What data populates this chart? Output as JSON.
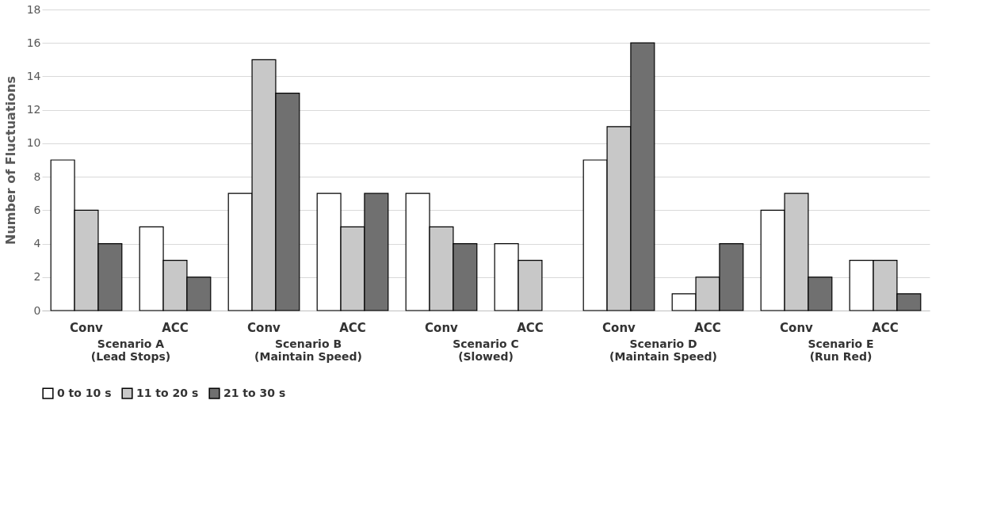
{
  "chart_data": {
    "type": "bar",
    "ylabel": "Number of Fluctuations",
    "categories": [
      "Conv",
      "ACC",
      "Conv",
      "ACC",
      "Conv",
      "ACC",
      "Conv",
      "ACC",
      "Conv",
      "ACC"
    ],
    "annotations": [
      "Scenario A (Lead Stops)",
      "Scenario B (Maintain Speed)",
      "Scenario C (Slowed)",
      "Scenario D (Maintain Speed)",
      "Scenario E (Run Red)"
    ],
    "series": [
      {
        "name": "0 to 10 s",
        "color": "#ffffff",
        "values": [
          9,
          5,
          7,
          7,
          7,
          4,
          9,
          1,
          6,
          3
        ]
      },
      {
        "name": "11 to 20 s",
        "color": "#c8c8c8",
        "values": [
          6,
          3,
          15,
          5,
          5,
          3,
          11,
          2,
          7,
          3
        ]
      },
      {
        "name": "21 to 30 s",
        "color": "#707070",
        "values": [
          4,
          2,
          13,
          7,
          4,
          0,
          16,
          4,
          2,
          1
        ]
      }
    ],
    "ylim": [
      0,
      18
    ],
    "yticks": [
      0,
      2,
      4,
      6,
      8,
      10,
      12,
      14,
      16,
      18
    ],
    "grid": "y",
    "legend": "bottom"
  }
}
